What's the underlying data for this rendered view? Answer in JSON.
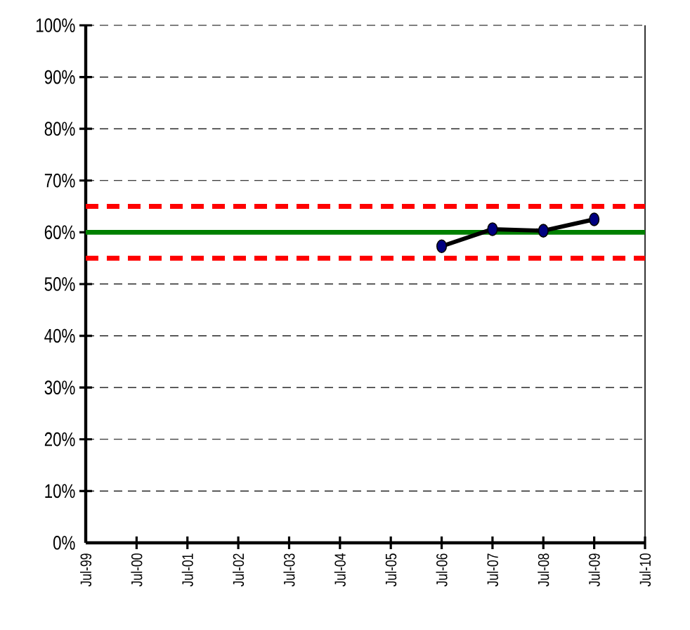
{
  "chart_data": {
    "type": "line",
    "categories": [
      "Jul-99",
      "Jul-00",
      "Jul-01",
      "Jul-02",
      "Jul-03",
      "Jul-04",
      "Jul-05",
      "Jul-06",
      "Jul-07",
      "Jul-08",
      "Jul-09",
      "Jul-10"
    ],
    "series": [
      {
        "color": "#000000",
        "values": [
          null,
          null,
          null,
          null,
          null,
          null,
          null,
          57.3,
          60.6,
          60.3,
          62.5,
          null
        ]
      }
    ],
    "marker": "circle",
    "ylim": [
      0,
      100
    ],
    "yticks": [
      {
        "value": 0,
        "label": "0%"
      },
      {
        "value": 10,
        "label": "10%"
      },
      {
        "value": 20,
        "label": "20%"
      },
      {
        "value": 30,
        "label": "30%"
      },
      {
        "value": 40,
        "label": "40%"
      },
      {
        "value": 50,
        "label": "50%"
      },
      {
        "value": 60,
        "label": "60%"
      },
      {
        "value": 70,
        "label": "70%"
      },
      {
        "value": 80,
        "label": "80%"
      },
      {
        "value": 90,
        "label": "90%"
      },
      {
        "value": 100,
        "label": "100%"
      }
    ],
    "grid": "y",
    "ref_lines": [
      {
        "axis": "y",
        "value": 60,
        "color": "#008000",
        "line_style": "solid"
      },
      {
        "axis": "y",
        "value": 65,
        "color": "#ff0000",
        "line_style": "dashed"
      },
      {
        "axis": "y",
        "value": 55,
        "color": "#ff0000",
        "line_style": "dashed"
      }
    ]
  }
}
